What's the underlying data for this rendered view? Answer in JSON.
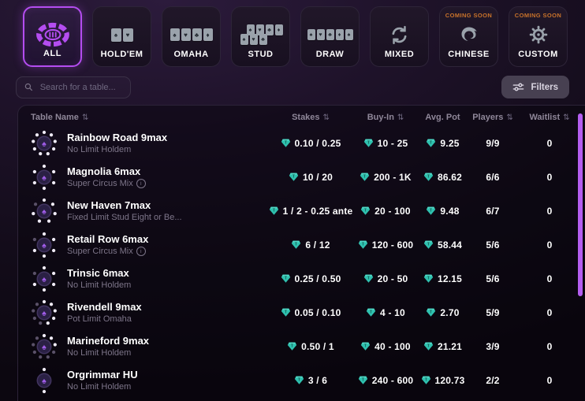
{
  "tabs": [
    {
      "label": "ALL",
      "icon": "poker-chip-icon",
      "selected": true
    },
    {
      "label": "HOLD'EM",
      "icon": "two-cards-icon"
    },
    {
      "label": "OMAHA",
      "icon": "four-cards-icon"
    },
    {
      "label": "STUD",
      "icon": "stud-cards-icon"
    },
    {
      "label": "DRAW",
      "icon": "five-cards-icon"
    },
    {
      "label": "MIXED",
      "icon": "refresh-icon"
    },
    {
      "label": "CHINESE",
      "icon": "dragon-icon",
      "badge": "COMING SOON"
    },
    {
      "label": "CUSTOM",
      "icon": "gear-icon",
      "badge": "COMING SOON"
    }
  ],
  "search": {
    "placeholder": "Search for a table..."
  },
  "filters_button": {
    "label": "Filters"
  },
  "table": {
    "columns": [
      {
        "label": "Table Name",
        "sortable": true
      },
      {
        "label": "Stakes",
        "sortable": true
      },
      {
        "label": "Buy-In",
        "sortable": true
      },
      {
        "label": "Avg. Pot",
        "sortable": false
      },
      {
        "label": "Players",
        "sortable": true
      },
      {
        "label": "Waitlist",
        "sortable": true
      }
    ],
    "rows": [
      {
        "name": "Rainbow Road 9max",
        "game": "No Limit Holdem",
        "seats": 9,
        "info": false,
        "stakes": "0.10 / 0.25",
        "buy_in": "10 - 25",
        "avg_pot": "9.25",
        "players": "9/9",
        "waitlist": "0"
      },
      {
        "name": "Magnolia 6max",
        "game": "Super Circus Mix",
        "seats": 6,
        "info": true,
        "stakes": "10 / 20",
        "buy_in": "200 - 1K",
        "avg_pot": "86.62",
        "players": "6/6",
        "waitlist": "0"
      },
      {
        "name": "New Haven 7max",
        "game": "Fixed Limit Stud Eight or Be...",
        "seats": 7,
        "info": false,
        "stakes": "1 / 2 - 0.25 ante",
        "buy_in": "20 - 100",
        "avg_pot": "9.48",
        "players": "6/7",
        "waitlist": "0"
      },
      {
        "name": "Retail Row 6max",
        "game": "Super Circus Mix",
        "seats": 6,
        "info": true,
        "stakes": "6 / 12",
        "buy_in": "120 - 600",
        "avg_pot": "58.44",
        "players": "5/6",
        "waitlist": "0"
      },
      {
        "name": "Trinsic 6max",
        "game": "No Limit Holdem",
        "seats": 6,
        "info": false,
        "stakes": "0.25 / 0.50",
        "buy_in": "20 - 50",
        "avg_pot": "12.15",
        "players": "5/6",
        "waitlist": "0"
      },
      {
        "name": "Rivendell 9max",
        "game": "Pot Limit Omaha",
        "seats": 9,
        "info": false,
        "stakes": "0.05 / 0.10",
        "buy_in": "4 - 10",
        "avg_pot": "2.70",
        "players": "5/9",
        "waitlist": "0"
      },
      {
        "name": "Marineford 9max",
        "game": "No Limit Holdem",
        "seats": 9,
        "info": false,
        "stakes": "0.50 / 1",
        "buy_in": "40 - 100",
        "avg_pot": "21.21",
        "players": "3/9",
        "waitlist": "0"
      },
      {
        "name": "Orgrimmar HU",
        "game": "No Limit Holdem",
        "seats": 2,
        "info": false,
        "stakes": "3 / 6",
        "buy_in": "240 - 600",
        "avg_pot": "120.73",
        "players": "2/2",
        "waitlist": "0"
      }
    ]
  },
  "colors": {
    "accent": "#b44df0",
    "gem": "#2fc0ae",
    "coming_soon": "#c9732a",
    "scrollbar": "#b45ef0"
  }
}
